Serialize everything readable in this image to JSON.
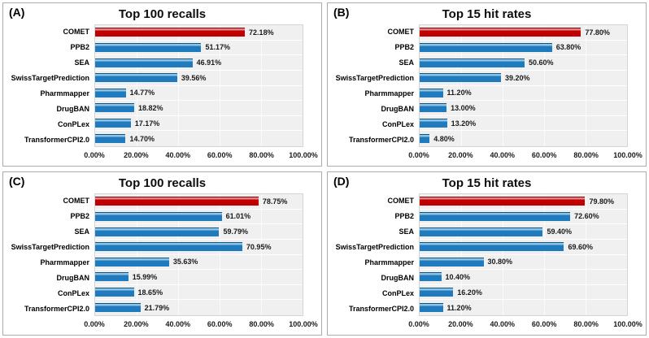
{
  "figure": {
    "background": "#FFFFFF",
    "panel_border_color": "#ABABAB"
  },
  "colors": {
    "highlight_bar": "#C00000",
    "highlight_bar_light": "#E08383",
    "highlight_bar_dark": "#7E0000",
    "default_bar": "#1F7BBD",
    "default_bar_light": "#8FC3E4",
    "default_bar_dark": "#10557F",
    "plot_background": "#F0F0F0",
    "gridline": "#FBFBFB",
    "plot_border": "#D5D5D5",
    "category_text": "#000000",
    "value_text": "#1A1A1A",
    "title_text": "#0D0D0D"
  },
  "chart_data": [
    {
      "panel_label": "(A)",
      "type": "bar",
      "orientation": "horizontal",
      "title": "Top 100 recalls",
      "categories": [
        "COMET",
        "PPB2",
        "SEA",
        "SwissTargetPrediction",
        "Pharmmapper",
        "DrugBAN",
        "ConPLex",
        "TransformerCPI2.0"
      ],
      "values": [
        72.18,
        51.17,
        46.91,
        39.56,
        14.77,
        18.82,
        17.17,
        14.7
      ],
      "value_labels": [
        "72.18%",
        "51.17%",
        "46.91%",
        "39.56%",
        "14.77%",
        "18.82%",
        "17.17%",
        "14.70%"
      ],
      "highlight_index": 0,
      "xlim": [
        0,
        100
      ],
      "xtick_labels": [
        "0.00%",
        "20.00%",
        "40.00%",
        "60.00%",
        "80.00%",
        "100.00%"
      ],
      "grid": true,
      "legend_position": "none"
    },
    {
      "panel_label": "(B)",
      "type": "bar",
      "orientation": "horizontal",
      "title": "Top 15 hit rates",
      "categories": [
        "COMET",
        "PPB2",
        "SEA",
        "SwissTargetPrediction",
        "Pharmmapper",
        "DrugBAN",
        "ConPLex",
        "TransformerCPI2.0"
      ],
      "values": [
        77.8,
        63.8,
        50.6,
        39.2,
        11.2,
        13.0,
        13.2,
        4.8
      ],
      "value_labels": [
        "77.80%",
        "63.80%",
        "50.60%",
        "39.20%",
        "11.20%",
        "13.00%",
        "13.20%",
        "4.80%"
      ],
      "highlight_index": 0,
      "xlim": [
        0,
        100
      ],
      "xtick_labels": [
        "0.00%",
        "20.00%",
        "40.00%",
        "60.00%",
        "80.00%",
        "100.00%"
      ],
      "grid": true,
      "legend_position": "none"
    },
    {
      "panel_label": "(C)",
      "type": "bar",
      "orientation": "horizontal",
      "title": "Top 100 recalls",
      "categories": [
        "COMET",
        "PPB2",
        "SEA",
        "SwissTargetPrediction",
        "Pharmmapper",
        "DrugBAN",
        "ConPLex",
        "TransformerCPI2.0"
      ],
      "values": [
        78.75,
        61.01,
        59.79,
        70.95,
        35.63,
        15.99,
        18.65,
        21.79
      ],
      "value_labels": [
        "78.75%",
        "61.01%",
        "59.79%",
        "70.95%",
        "35.63%",
        "15.99%",
        "18.65%",
        "21.79%"
      ],
      "highlight_index": 0,
      "xlim": [
        0,
        100
      ],
      "xtick_labels": [
        "0.00%",
        "20.00%",
        "40.00%",
        "60.00%",
        "80.00%",
        "100.00%"
      ],
      "grid": true,
      "legend_position": "none"
    },
    {
      "panel_label": "(D)",
      "type": "bar",
      "orientation": "horizontal",
      "title": "Top 15 hit rates",
      "categories": [
        "COMET",
        "PPB2",
        "SEA",
        "SwissTargetPrediction",
        "Pharmmapper",
        "DrugBAN",
        "ConPLex",
        "TransformerCPI2.0"
      ],
      "values": [
        79.8,
        72.6,
        59.4,
        69.6,
        30.8,
        10.4,
        16.2,
        11.2
      ],
      "value_labels": [
        "79.80%",
        "72.60%",
        "59.40%",
        "69.60%",
        "30.80%",
        "10.40%",
        "16.20%",
        "11.20%"
      ],
      "highlight_index": 0,
      "xlim": [
        0,
        100
      ],
      "xtick_labels": [
        "0.00%",
        "20.00%",
        "40.00%",
        "60.00%",
        "80.00%",
        "100.00%"
      ],
      "grid": true,
      "legend_position": "none"
    }
  ]
}
